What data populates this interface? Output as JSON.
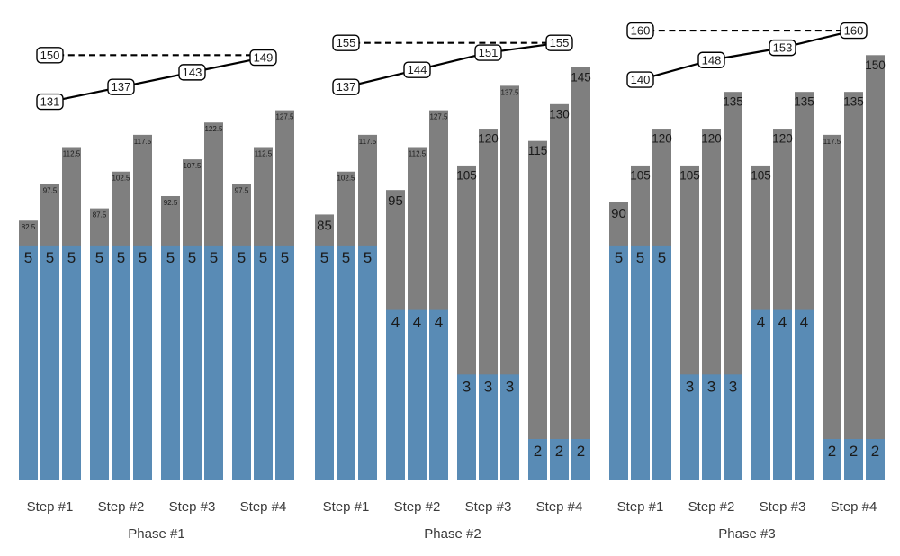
{
  "chart_data": {
    "type": "bar",
    "title": "",
    "xlabel": "",
    "ylabel": "",
    "legend": "none",
    "grid": false,
    "colors": {
      "bar_gray": "#7f7f7f",
      "bar_blue": "#598bb5",
      "bar_label_text": "#1a1a1a",
      "axis_label_text": "#3a3a3a",
      "line_color": "#000000",
      "target_line_color": "#000000",
      "box_fill": "#ffffff",
      "box_stroke": "#000000",
      "background": "#ffffff"
    },
    "panels": [
      {
        "title": "Phase #1",
        "target": 150,
        "line_values": [
          131,
          137,
          143,
          149
        ],
        "steps": [
          {
            "label": "Step #1",
            "blue_value": 5,
            "bar_totals": [
              82.5,
              97.5,
              112.5
            ]
          },
          {
            "label": "Step #2",
            "blue_value": 5,
            "bar_totals": [
              87.5,
              102.5,
              117.5
            ]
          },
          {
            "label": "Step #3",
            "blue_value": 5,
            "bar_totals": [
              92.5,
              107.5,
              122.5
            ]
          },
          {
            "label": "Step #4",
            "blue_value": 5,
            "bar_totals": [
              97.5,
              112.5,
              127.5
            ]
          }
        ]
      },
      {
        "title": "Phase #2",
        "target": 155,
        "line_values": [
          137,
          144,
          151,
          155
        ],
        "steps": [
          {
            "label": "Step #1",
            "blue_value": 5,
            "bar_totals": [
              85,
              102.5,
              117.5
            ]
          },
          {
            "label": "Step #2",
            "blue_value": 4,
            "bar_totals": [
              95,
              112.5,
              127.5
            ]
          },
          {
            "label": "Step #3",
            "blue_value": 3,
            "bar_totals": [
              105,
              120,
              137.5
            ]
          },
          {
            "label": "Step #4",
            "blue_value": 2,
            "bar_totals": [
              115,
              130,
              145
            ]
          }
        ]
      },
      {
        "title": "Phase #3",
        "target": 160,
        "line_values": [
          140,
          148,
          153,
          160
        ],
        "steps": [
          {
            "label": "Step #1",
            "blue_value": 5,
            "bar_totals": [
              90,
              105,
              120
            ]
          },
          {
            "label": "Step #2",
            "blue_value": 3,
            "bar_totals": [
              105,
              120,
              135
            ]
          },
          {
            "label": "Step #3",
            "blue_value": 4,
            "bar_totals": [
              105,
              120,
              135
            ]
          },
          {
            "label": "Step #4",
            "blue_value": 2,
            "bar_totals": [
              117.5,
              135,
              150
            ]
          }
        ]
      }
    ]
  }
}
